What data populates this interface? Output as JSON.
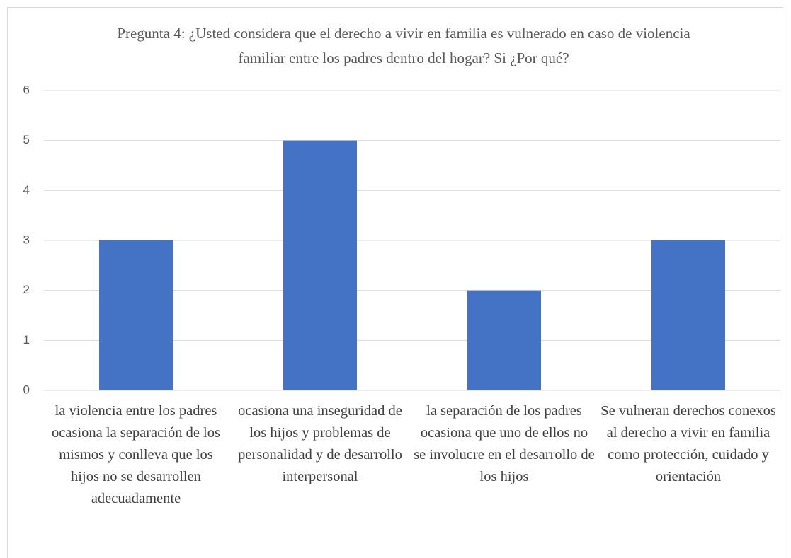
{
  "chart_data": {
    "type": "bar",
    "title": "Pregunta 4: ¿Usted considera que el derecho a vivir en familia es vulnerado en caso de violencia familiar entre los padres dentro del hogar? Si ¿Por qué?",
    "categories": [
      "la violencia entre los padres ocasiona la separación de los mismos y conlleva que los hijos no se desarrollen adecuadamente",
      "ocasiona una inseguridad de los hijos y problemas de personalidad y de desarrollo interpersonal",
      "la separación de los padres ocasiona que uno de ellos no se involucre en el desarrollo de los hijos",
      "Se vulneran derechos conexos al derecho a vivir en familia como protección, cuidado y orientación"
    ],
    "values": [
      3,
      5,
      2,
      3
    ],
    "color": "#4472c4",
    "ylim": [
      0,
      6
    ],
    "yticks": [
      0,
      1,
      2,
      3,
      4,
      5,
      6
    ],
    "grid": true
  }
}
